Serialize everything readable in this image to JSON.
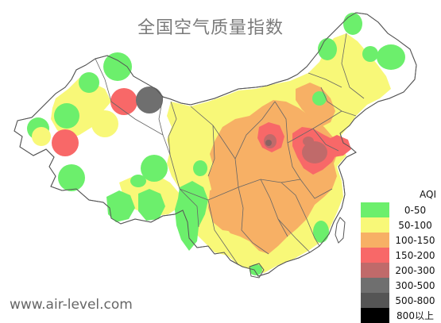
{
  "map": {
    "title": "全国空气质量指数",
    "watermark": "www.air-level.com",
    "colors": {
      "land": "#f7f769",
      "province_border": "#555555",
      "good": "#6cef6c",
      "moderate": "#f8f878",
      "sensitive": "#f7b065",
      "unhealthy": "#f86868",
      "very_unhealthy": "#c06a6a",
      "hazardous": "#6f6f6f",
      "severe": "#555555",
      "extreme": "#000000",
      "no_data": "#ffffff"
    },
    "legend": {
      "title": "AQI",
      "items": [
        {
          "range": "0-50",
          "color": "#6cef6c"
        },
        {
          "range": "50-100",
          "color": "#f8f878"
        },
        {
          "range": "100-150",
          "color": "#f7b065"
        },
        {
          "range": "150-200",
          "color": "#f86868"
        },
        {
          "range": "200-300",
          "color": "#c06a6a"
        },
        {
          "range": "300-500",
          "color": "#6f6f6f"
        },
        {
          "range": "500-800",
          "color": "#555555"
        },
        {
          "range": "800以上",
          "color": "#000000"
        }
      ]
    }
  }
}
